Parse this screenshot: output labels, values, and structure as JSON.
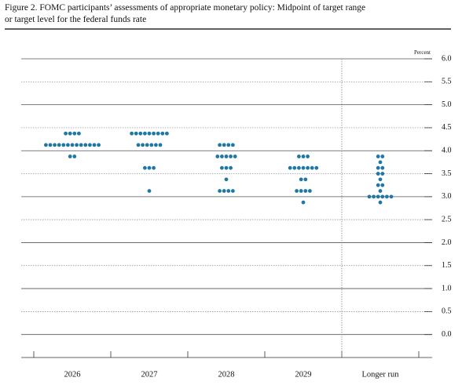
{
  "chart_data": {
    "type": "dot",
    "title": [
      "Figure 2. FOMC participants’ assessments of appropriate monetary policy: Midpoint of target range",
      "or target level for the federal funds rate"
    ],
    "y_axis_label": "Percent",
    "categories": [
      "2026",
      "2027",
      "2028",
      "2029",
      "Longer run"
    ],
    "dots": [
      [
        {
          "value": 4.375,
          "count": 4
        },
        {
          "value": 4.125,
          "count": 13
        },
        {
          "value": 3.875,
          "count": 2
        }
      ],
      [
        {
          "value": 4.375,
          "count": 9
        },
        {
          "value": 4.125,
          "count": 6
        },
        {
          "value": 3.625,
          "count": 3
        },
        {
          "value": 3.125,
          "count": 1
        }
      ],
      [
        {
          "value": 4.125,
          "count": 4
        },
        {
          "value": 3.875,
          "count": 5
        },
        {
          "value": 3.625,
          "count": 3
        },
        {
          "value": 3.375,
          "count": 1
        },
        {
          "value": 3.125,
          "count": 4
        }
      ],
      [
        {
          "value": 3.875,
          "count": 3
        },
        {
          "value": 3.625,
          "count": 7
        },
        {
          "value": 3.375,
          "count": 2
        },
        {
          "value": 3.125,
          "count": 4
        },
        {
          "value": 2.875,
          "count": 1
        }
      ],
      [
        {
          "value": 3.875,
          "count": 2
        },
        {
          "value": 3.75,
          "count": 1
        },
        {
          "value": 3.625,
          "count": 2
        },
        {
          "value": 3.5,
          "count": 2
        },
        {
          "value": 3.375,
          "count": 1
        },
        {
          "value": 3.25,
          "count": 2
        },
        {
          "value": 3.125,
          "count": 1
        },
        {
          "value": 3.0,
          "count": 6
        },
        {
          "value": 2.875,
          "count": 1
        }
      ]
    ],
    "color": "#1f77a6",
    "ylim": [
      -0.5,
      6.0
    ],
    "yticks": [
      {
        "value": 6,
        "label": "6.0"
      },
      5.5,
      {
        "value": 5,
        "label": "5.0"
      },
      4.5,
      {
        "value": 4,
        "label": "4.0"
      },
      3.5,
      {
        "value": 3,
        "label": "3.0"
      },
      2.5,
      {
        "value": 2,
        "label": "2.0"
      },
      1.5,
      {
        "value": 1,
        "label": "1.0"
      },
      0.5,
      {
        "value": 0,
        "label": "0.0"
      }
    ],
    "grid": true
  }
}
